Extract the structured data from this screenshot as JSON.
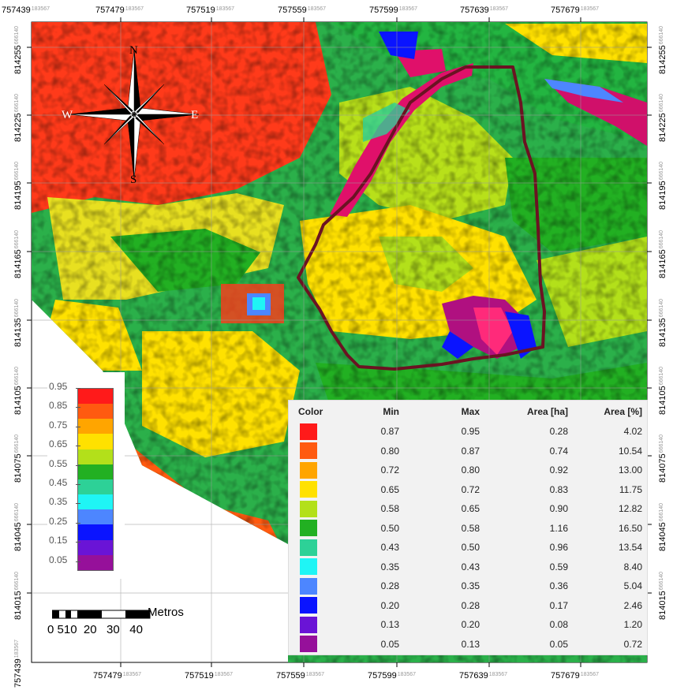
{
  "axes": {
    "x_ticks": [
      {
        "main": "757439",
        "sup": "183567"
      },
      {
        "main": "757479",
        "sup": "183567"
      },
      {
        "main": "757519",
        "sup": "183567"
      },
      {
        "main": "757559",
        "sup": "183567"
      },
      {
        "main": "757599",
        "sup": "183567"
      },
      {
        "main": "757639",
        "sup": "183567"
      },
      {
        "main": "757679",
        "sup": "183567"
      }
    ],
    "y_ticks": [
      {
        "main": "814255",
        "sup": "666140"
      },
      {
        "main": "814225",
        "sup": "666140"
      },
      {
        "main": "814195",
        "sup": "666140"
      },
      {
        "main": "814165",
        "sup": "666140"
      },
      {
        "main": "814135",
        "sup": "666140"
      },
      {
        "main": "814105",
        "sup": "666140"
      },
      {
        "main": "814075",
        "sup": "666140"
      },
      {
        "main": "814045",
        "sup": "666140"
      },
      {
        "main": "814015",
        "sup": "666140"
      },
      {
        "main": "757439",
        "sup": "183567"
      }
    ]
  },
  "compass": {
    "n": "N",
    "s": "S",
    "e": "E",
    "w": "W"
  },
  "color_ramp": {
    "labels": [
      "0.95",
      "0.85",
      "0.75",
      "0.65",
      "0.55",
      "0.45",
      "0.35",
      "0.25",
      "0.15",
      "0.05"
    ],
    "colors": [
      "#ff1a1a",
      "#ff5a10",
      "#ffa500",
      "#ffe100",
      "#b3e01a",
      "#22b022",
      "#2dd197",
      "#1ff5f5",
      "#4d86ff",
      "#0a14ff",
      "#6a14d6",
      "#96109a"
    ]
  },
  "scale_bar": {
    "unit": "Metros",
    "labels": "0 510  20   30   40"
  },
  "table": {
    "headers": [
      "Color",
      "Min",
      "Max",
      "Area [ha]",
      "Area [%]"
    ],
    "rows": [
      {
        "color": "#ff1a1a",
        "min": "0.87",
        "max": "0.95",
        "area_ha": "0.28",
        "area_pct": "4.02"
      },
      {
        "color": "#ff5a10",
        "min": "0.80",
        "max": "0.87",
        "area_ha": "0.74",
        "area_pct": "10.54"
      },
      {
        "color": "#ffa500",
        "min": "0.72",
        "max": "0.80",
        "area_ha": "0.92",
        "area_pct": "13.00"
      },
      {
        "color": "#ffe100",
        "min": "0.65",
        "max": "0.72",
        "area_ha": "0.83",
        "area_pct": "11.75"
      },
      {
        "color": "#b3e01a",
        "min": "0.58",
        "max": "0.65",
        "area_ha": "0.90",
        "area_pct": "12.82"
      },
      {
        "color": "#22b022",
        "min": "0.50",
        "max": "0.58",
        "area_ha": "1.16",
        "area_pct": "16.50"
      },
      {
        "color": "#2dd197",
        "min": "0.43",
        "max": "0.50",
        "area_ha": "0.96",
        "area_pct": "13.54"
      },
      {
        "color": "#1ff5f5",
        "min": "0.35",
        "max": "0.43",
        "area_ha": "0.59",
        "area_pct": "8.40"
      },
      {
        "color": "#4d86ff",
        "min": "0.28",
        "max": "0.35",
        "area_ha": "0.36",
        "area_pct": "5.04"
      },
      {
        "color": "#0a14ff",
        "min": "0.20",
        "max": "0.28",
        "area_ha": "0.17",
        "area_pct": "2.46"
      },
      {
        "color": "#6a14d6",
        "min": "0.13",
        "max": "0.20",
        "area_ha": "0.08",
        "area_pct": "1.20"
      },
      {
        "color": "#96109a",
        "min": "0.05",
        "max": "0.13",
        "area_ha": "0.05",
        "area_pct": "0.72"
      }
    ]
  }
}
